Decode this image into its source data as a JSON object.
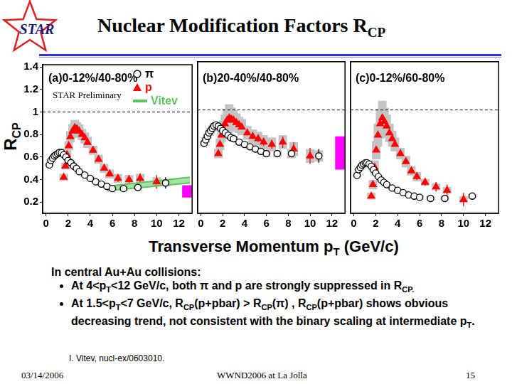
{
  "slide": {
    "logo_text": "STAR",
    "title": [
      {
        "text": "Nuclear Modification Factors R"
      },
      {
        "text": "CP",
        "sub": true
      }
    ],
    "xlabel": [
      {
        "text": "Transverse Momentum p"
      },
      {
        "text": "T",
        "sub": true
      },
      {
        "text": " (GeV/c)"
      }
    ],
    "notes_header": "In central Au+Au collisions:",
    "bullets": [
      [
        {
          "text": "At 4<p"
        },
        {
          "text": "T",
          "sub": true
        },
        {
          "text": "<12 GeV/c,  both π and p are strongly suppressed in R"
        },
        {
          "text": "CP.",
          "sub": true
        }
      ],
      [
        {
          "text": "At 1.5<p"
        },
        {
          "text": "T",
          "sub": true
        },
        {
          "text": "<7 GeV/c, R"
        },
        {
          "text": "CP",
          "sub": true
        },
        {
          "text": "(p+pbar) > R"
        },
        {
          "text": "CP",
          "sub": true
        },
        {
          "text": "(π) , R"
        },
        {
          "text": "CP",
          "sub": true
        },
        {
          "text": "(p+pbar) shows obvious decreasing trend,  not consistent with the binary scaling at intermediate p"
        },
        {
          "text": "T",
          "sub": true
        },
        {
          "text": "."
        }
      ]
    ],
    "reference": "I. Vitev, nucl-ex/0603010.",
    "footer": {
      "date": "03/14/2006",
      "event": "WWND2006 at La Jolla",
      "page": "15"
    }
  },
  "chart_data": [
    {
      "type": "scatter",
      "panel_label": "(a)0-12%/40-80%",
      "annotation": "STAR Preliminary",
      "ylabel": [
        {
          "text": "R"
        },
        {
          "text": "CP",
          "sub": true
        }
      ],
      "xlim": [
        -0.3,
        13.2
      ],
      "xticks": [
        0,
        2,
        4,
        6,
        8,
        10,
        12
      ],
      "ylim": [
        0.1,
        1.42
      ],
      "yticks": [
        0.2,
        0.4,
        0.6,
        0.8,
        1,
        1.2,
        1.4
      ],
      "tick_labels": true,
      "legend": "top right",
      "reference_line": {
        "y": 1,
        "line_style": "dashed"
      },
      "norm_uncertainty": {
        "x": 12.75,
        "low": 0.24,
        "high": 0.35,
        "color": "#ff00ff"
      },
      "series": [
        {
          "name": "π",
          "color": "#000000",
          "marker": "open_circle",
          "x": [
            0.3,
            0.45,
            0.6,
            0.75,
            0.9,
            1.05,
            1.2,
            1.4,
            1.6,
            1.8,
            2.0,
            2.25,
            2.5,
            2.75,
            3.0,
            3.5,
            4.0,
            4.5,
            5.0,
            5.5,
            6.0,
            7.0,
            8.3,
            10.8
          ],
          "values": [
            0.53,
            0.57,
            0.59,
            0.61,
            0.62,
            0.63,
            0.64,
            0.64,
            0.62,
            0.6,
            0.57,
            0.55,
            0.52,
            0.5,
            0.47,
            0.44,
            0.41,
            0.38,
            0.36,
            0.34,
            0.32,
            0.32,
            0.33,
            0.37
          ],
          "errors": [
            0.005,
            0.005,
            0.005,
            0.005,
            0.005,
            0.005,
            0.005,
            0.005,
            0.005,
            0.005,
            0.005,
            0.005,
            0.005,
            0.005,
            0.005,
            0.01,
            0.01,
            0.01,
            0.01,
            0.015,
            0.02,
            0.02,
            0.03,
            0.05
          ],
          "sys_errors": [
            0.015,
            0.015,
            0.015,
            0.015,
            0.015,
            0.015,
            0.015,
            0.015,
            0.015,
            0.015,
            0.015,
            0.015,
            0.015,
            0.015,
            0.015,
            0.015,
            0.015,
            0.015,
            0.015,
            0.015,
            0.02,
            0.02,
            0.025,
            0.03
          ]
        },
        {
          "name": "p",
          "color": "#ff0000",
          "marker": "triangle",
          "x": [
            1.6,
            1.75,
            1.9,
            2.05,
            2.2,
            2.4,
            2.6,
            2.8,
            3.0,
            3.25,
            3.5,
            3.75,
            4.25,
            4.75,
            5.25,
            5.75,
            6.5,
            7.5,
            8.5,
            10.0
          ],
          "values": [
            0.42,
            0.52,
            0.62,
            0.7,
            0.78,
            0.83,
            0.86,
            0.85,
            0.83,
            0.8,
            0.77,
            0.73,
            0.66,
            0.58,
            0.5,
            0.45,
            0.41,
            0.4,
            0.41,
            0.38
          ],
          "errors": [
            0.01,
            0.01,
            0.01,
            0.01,
            0.01,
            0.01,
            0.01,
            0.01,
            0.01,
            0.01,
            0.01,
            0.015,
            0.02,
            0.02,
            0.02,
            0.025,
            0.03,
            0.035,
            0.045,
            0.06
          ],
          "sys_errors": [
            0.03,
            0.03,
            0.04,
            0.04,
            0.05,
            0.06,
            0.07,
            0.06,
            0.06,
            0.05,
            0.05,
            0.05,
            0.04,
            0.04,
            0.04,
            0.04,
            0.04,
            0.04,
            0.04,
            0.04
          ]
        },
        {
          "name": "Vitev",
          "type": "band",
          "color": "#5cc45c",
          "x": [
            5.5,
            13
          ],
          "low": [
            0.3,
            0.37
          ],
          "high": [
            0.34,
            0.42
          ]
        }
      ]
    },
    {
      "type": "scatter",
      "panel_label": "(b)20-40%/40-80%",
      "xlim": [
        -0.3,
        13.2
      ],
      "xticks": [
        0,
        2,
        4,
        6,
        8,
        10,
        12
      ],
      "ylim": [
        0.1,
        1.42
      ],
      "yticks": [
        0.2,
        0.4,
        0.6,
        0.8,
        1,
        1.2,
        1.4
      ],
      "tick_labels": "x",
      "reference_line": {
        "y": 1,
        "line_style": "dashed"
      },
      "norm_uncertainty": {
        "x": 12.75,
        "low": 0.48,
        "high": 0.77,
        "color": "#ff00ff"
      },
      "series": [
        {
          "color": "#000000",
          "marker": "open_circle",
          "x": [
            0.3,
            0.45,
            0.6,
            0.75,
            0.9,
            1.05,
            1.2,
            1.4,
            1.6,
            1.8,
            2.0,
            2.25,
            2.5,
            2.75,
            3.0,
            3.5,
            4.0,
            4.5,
            5.0,
            5.5,
            6.0,
            7.0,
            8.3,
            10.8
          ],
          "values": [
            0.71,
            0.74,
            0.77,
            0.8,
            0.82,
            0.84,
            0.86,
            0.87,
            0.86,
            0.84,
            0.82,
            0.8,
            0.78,
            0.76,
            0.75,
            0.72,
            0.7,
            0.68,
            0.66,
            0.64,
            0.62,
            0.62,
            0.62,
            0.6
          ],
          "errors": [
            0.005,
            0.005,
            0.005,
            0.005,
            0.005,
            0.005,
            0.005,
            0.005,
            0.005,
            0.005,
            0.005,
            0.005,
            0.005,
            0.005,
            0.005,
            0.01,
            0.01,
            0.01,
            0.01,
            0.015,
            0.02,
            0.02,
            0.03,
            0.06
          ],
          "sys_errors": [
            0.025,
            0.025,
            0.025,
            0.025,
            0.025,
            0.025,
            0.025,
            0.025,
            0.025,
            0.025,
            0.025,
            0.025,
            0.025,
            0.025,
            0.025,
            0.025,
            0.025,
            0.025,
            0.025,
            0.025,
            0.03,
            0.03,
            0.04,
            0.05
          ]
        },
        {
          "color": "#ff0000",
          "marker": "triangle",
          "x": [
            1.6,
            1.75,
            1.9,
            2.05,
            2.2,
            2.4,
            2.6,
            2.8,
            3.0,
            3.25,
            3.5,
            3.75,
            4.25,
            4.75,
            5.25,
            5.75,
            6.5,
            7.5,
            8.5,
            10.0
          ],
          "values": [
            0.62,
            0.7,
            0.78,
            0.84,
            0.88,
            0.91,
            0.93,
            0.92,
            0.91,
            0.89,
            0.87,
            0.85,
            0.8,
            0.77,
            0.75,
            0.72,
            0.7,
            0.72,
            0.66,
            0.6
          ],
          "errors": [
            0.01,
            0.01,
            0.01,
            0.01,
            0.01,
            0.01,
            0.01,
            0.01,
            0.01,
            0.01,
            0.01,
            0.02,
            0.02,
            0.025,
            0.03,
            0.035,
            0.04,
            0.05,
            0.06,
            0.07
          ],
          "sys_errors": [
            0.04,
            0.05,
            0.06,
            0.07,
            0.08,
            0.1,
            0.12,
            0.1,
            0.09,
            0.08,
            0.07,
            0.07,
            0.06,
            0.06,
            0.06,
            0.06,
            0.06,
            0.06,
            0.06,
            0.06
          ]
        }
      ]
    },
    {
      "type": "scatter",
      "panel_label": "(c)0-12%/60-80%",
      "xlim": [
        -0.3,
        13.2
      ],
      "xticks": [
        0,
        2,
        4,
        6,
        8,
        10,
        12
      ],
      "ylim": [
        0.1,
        1.42
      ],
      "yticks": [
        0.2,
        0.4,
        0.6,
        0.8,
        1,
        1.2,
        1.4
      ],
      "tick_labels": "x",
      "reference_line": {
        "y": 1,
        "line_style": "dashed"
      },
      "series": [
        {
          "color": "#000000",
          "marker": "open_circle",
          "x": [
            0.3,
            0.45,
            0.6,
            0.75,
            0.9,
            1.05,
            1.2,
            1.4,
            1.6,
            1.8,
            2.0,
            2.25,
            2.5,
            2.75,
            3.0,
            3.5,
            4.0,
            4.5,
            5.0,
            5.5,
            6.0,
            7.0,
            8.3,
            10.8
          ],
          "values": [
            0.43,
            0.48,
            0.5,
            0.52,
            0.53,
            0.54,
            0.54,
            0.53,
            0.51,
            0.48,
            0.45,
            0.42,
            0.39,
            0.37,
            0.35,
            0.32,
            0.3,
            0.28,
            0.26,
            0.25,
            0.24,
            0.23,
            0.23,
            0.25
          ],
          "errors": [
            0.005,
            0.005,
            0.005,
            0.005,
            0.005,
            0.005,
            0.005,
            0.005,
            0.005,
            0.005,
            0.005,
            0.005,
            0.005,
            0.005,
            0.005,
            0.01,
            0.01,
            0.01,
            0.01,
            0.015,
            0.02,
            0.02,
            0.02,
            0.03
          ],
          "sys_errors": [
            0.015,
            0.015,
            0.015,
            0.015,
            0.015,
            0.015,
            0.015,
            0.015,
            0.015,
            0.015,
            0.015,
            0.015,
            0.015,
            0.015,
            0.015,
            0.015,
            0.015,
            0.015,
            0.015,
            0.015,
            0.02,
            0.02,
            0.02,
            0.02
          ]
        },
        {
          "color": "#ff0000",
          "marker": "triangle",
          "x": [
            1.6,
            1.75,
            1.9,
            2.05,
            2.2,
            2.4,
            2.6,
            2.8,
            3.0,
            3.25,
            3.5,
            3.75,
            4.25,
            4.75,
            5.25,
            5.75,
            6.5,
            7.5,
            8.5,
            10.0
          ],
          "values": [
            0.25,
            0.35,
            0.5,
            0.65,
            0.78,
            0.88,
            0.93,
            0.9,
            0.86,
            0.8,
            0.75,
            0.7,
            0.62,
            0.55,
            0.47,
            0.42,
            0.37,
            0.33,
            0.3,
            0.22
          ],
          "errors": [
            0.01,
            0.01,
            0.01,
            0.01,
            0.01,
            0.01,
            0.01,
            0.01,
            0.01,
            0.01,
            0.01,
            0.015,
            0.02,
            0.02,
            0.025,
            0.03,
            0.03,
            0.04,
            0.05,
            0.06
          ],
          "sys_errors": [
            0.03,
            0.04,
            0.06,
            0.08,
            0.1,
            0.13,
            0.15,
            0.12,
            0.1,
            0.08,
            0.07,
            0.06,
            0.05,
            0.05,
            0.04,
            0.04,
            0.03,
            0.03,
            0.03,
            0.03
          ]
        }
      ]
    }
  ]
}
